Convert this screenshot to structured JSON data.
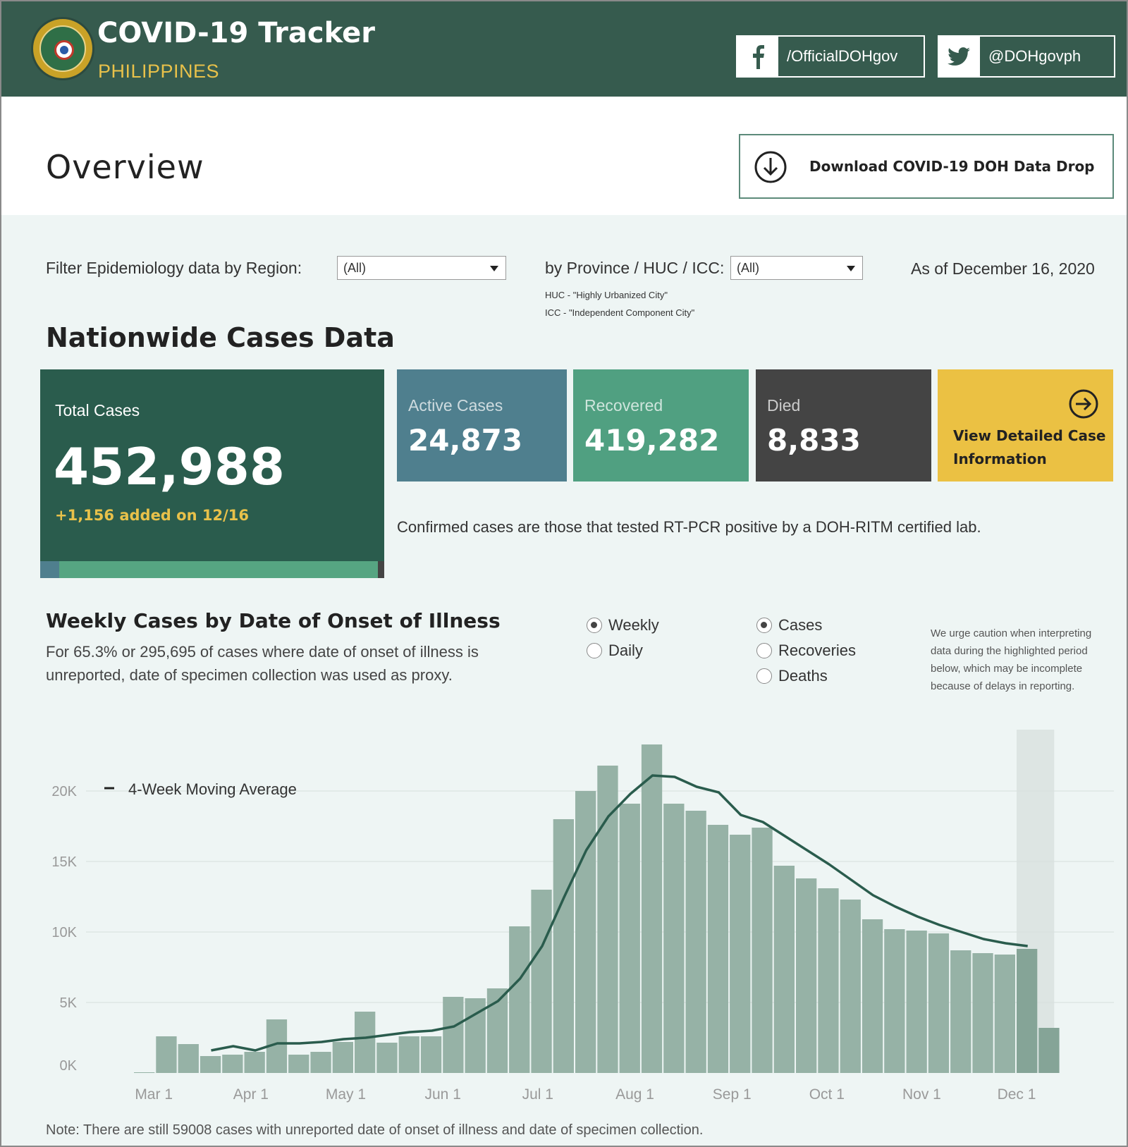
{
  "header": {
    "title": "COVID-19 Tracker",
    "subtitle": "PHILIPPINES",
    "facebook_handle": "/OfficialDOHgov",
    "twitter_handle": "@DOHgovph"
  },
  "overview": {
    "title": "Overview",
    "download_label": "Download COVID-19 DOH Data Drop"
  },
  "filters": {
    "region_label": "Filter Epidemiology data by Region:",
    "region_value": "(All)",
    "province_label": "by Province / HUC / ICC:",
    "province_value": "(All)",
    "as_of": "As of December 16, 2020",
    "huc_note": "HUC - \"Highly Urbanized City\"",
    "icc_note": "ICC - \"Independent Component City\""
  },
  "nationwide": {
    "title": "Nationwide Cases Data",
    "total_label": "Total Cases",
    "total_value": "452,988",
    "added": "+1,156 added on 12/16",
    "active_label": "Active Cases",
    "active_value": "24,873",
    "recovered_label": "Recovered",
    "recovered_value": "419,282",
    "died_label": "Died",
    "died_value": "8,833",
    "view_label": "View Detailed Case Information",
    "confirm_note": "Confirmed cases are those that tested RT-PCR positive by a DOH-RITM certified lab."
  },
  "weekly": {
    "title": "Weekly Cases by Date of Onset of Illness",
    "description": "For 65.3% or 295,695 of cases where date of onset of illness is unreported, date of specimen collection was used as proxy.",
    "period_options": [
      {
        "label": "Weekly",
        "selected": true
      },
      {
        "label": "Daily",
        "selected": false
      }
    ],
    "metric_options": [
      {
        "label": "Cases",
        "selected": true
      },
      {
        "label": "Recoveries",
        "selected": false
      },
      {
        "label": "Deaths",
        "selected": false
      }
    ],
    "caution": "We urge caution when interpreting data during the highlighted period below, which may be incomplete because of delays in reporting."
  },
  "chart_data": {
    "type": "bar",
    "legend": "4-Week Moving Average",
    "y_ticks": [
      "0K",
      "5K",
      "10K",
      "15K",
      "20K"
    ],
    "ylim": [
      0,
      24000
    ],
    "x_tick_labels": [
      "Mar 1",
      "Apr 1",
      "May 1",
      "Jun 1",
      "Jul 1",
      "Aug 1",
      "Sep 1",
      "Oct 1",
      "Nov 1",
      "Dec 1"
    ],
    "x_tick_week_index": [
      0.4,
      4.8,
      9.1,
      13.5,
      17.8,
      22.2,
      26.6,
      30.9,
      35.2,
      39.5
    ],
    "highlight_weeks": [
      40,
      41
    ],
    "series": [
      {
        "name": "Weekly Cases",
        "values": [
          50,
          2600,
          2050,
          1200,
          1300,
          1500,
          3800,
          1300,
          1500,
          2200,
          4350,
          2150,
          2600,
          2600,
          5400,
          5300,
          6000,
          10400,
          13000,
          18000,
          20000,
          21800,
          19100,
          23300,
          19100,
          18600,
          17600,
          16900,
          17400,
          14700,
          13800,
          13100,
          12300,
          10900,
          10200,
          10100,
          9900,
          8700,
          8500,
          8400,
          8800,
          3200
        ]
      },
      {
        "name": "4-Week Moving Average",
        "values": [
          null,
          null,
          null,
          1600,
          1900,
          1600,
          2100,
          2100,
          2200,
          2400,
          2500,
          2700,
          2900,
          3000,
          3300,
          4200,
          5100,
          6700,
          9000,
          12500,
          15800,
          18200,
          19800,
          21100,
          21000,
          20300,
          19900,
          18300,
          17800,
          16800,
          15800,
          14800,
          13700,
          12600,
          11800,
          11100,
          10500,
          10000,
          9500,
          9200,
          9000,
          null
        ]
      }
    ]
  },
  "footer": {
    "note": "Note: There are still 59008 cases with unreported date of onset of illness and date of specimen collection."
  },
  "colors": {
    "header_bg": "#365b4e",
    "accent_yellow": "#ebc143",
    "total_bg": "#2a5c4d",
    "active_bg": "#4f7f8e",
    "recovered_bg": "#50a081",
    "died_bg": "#444444",
    "bar": "#96b2a6",
    "line": "#2a5c4d"
  }
}
